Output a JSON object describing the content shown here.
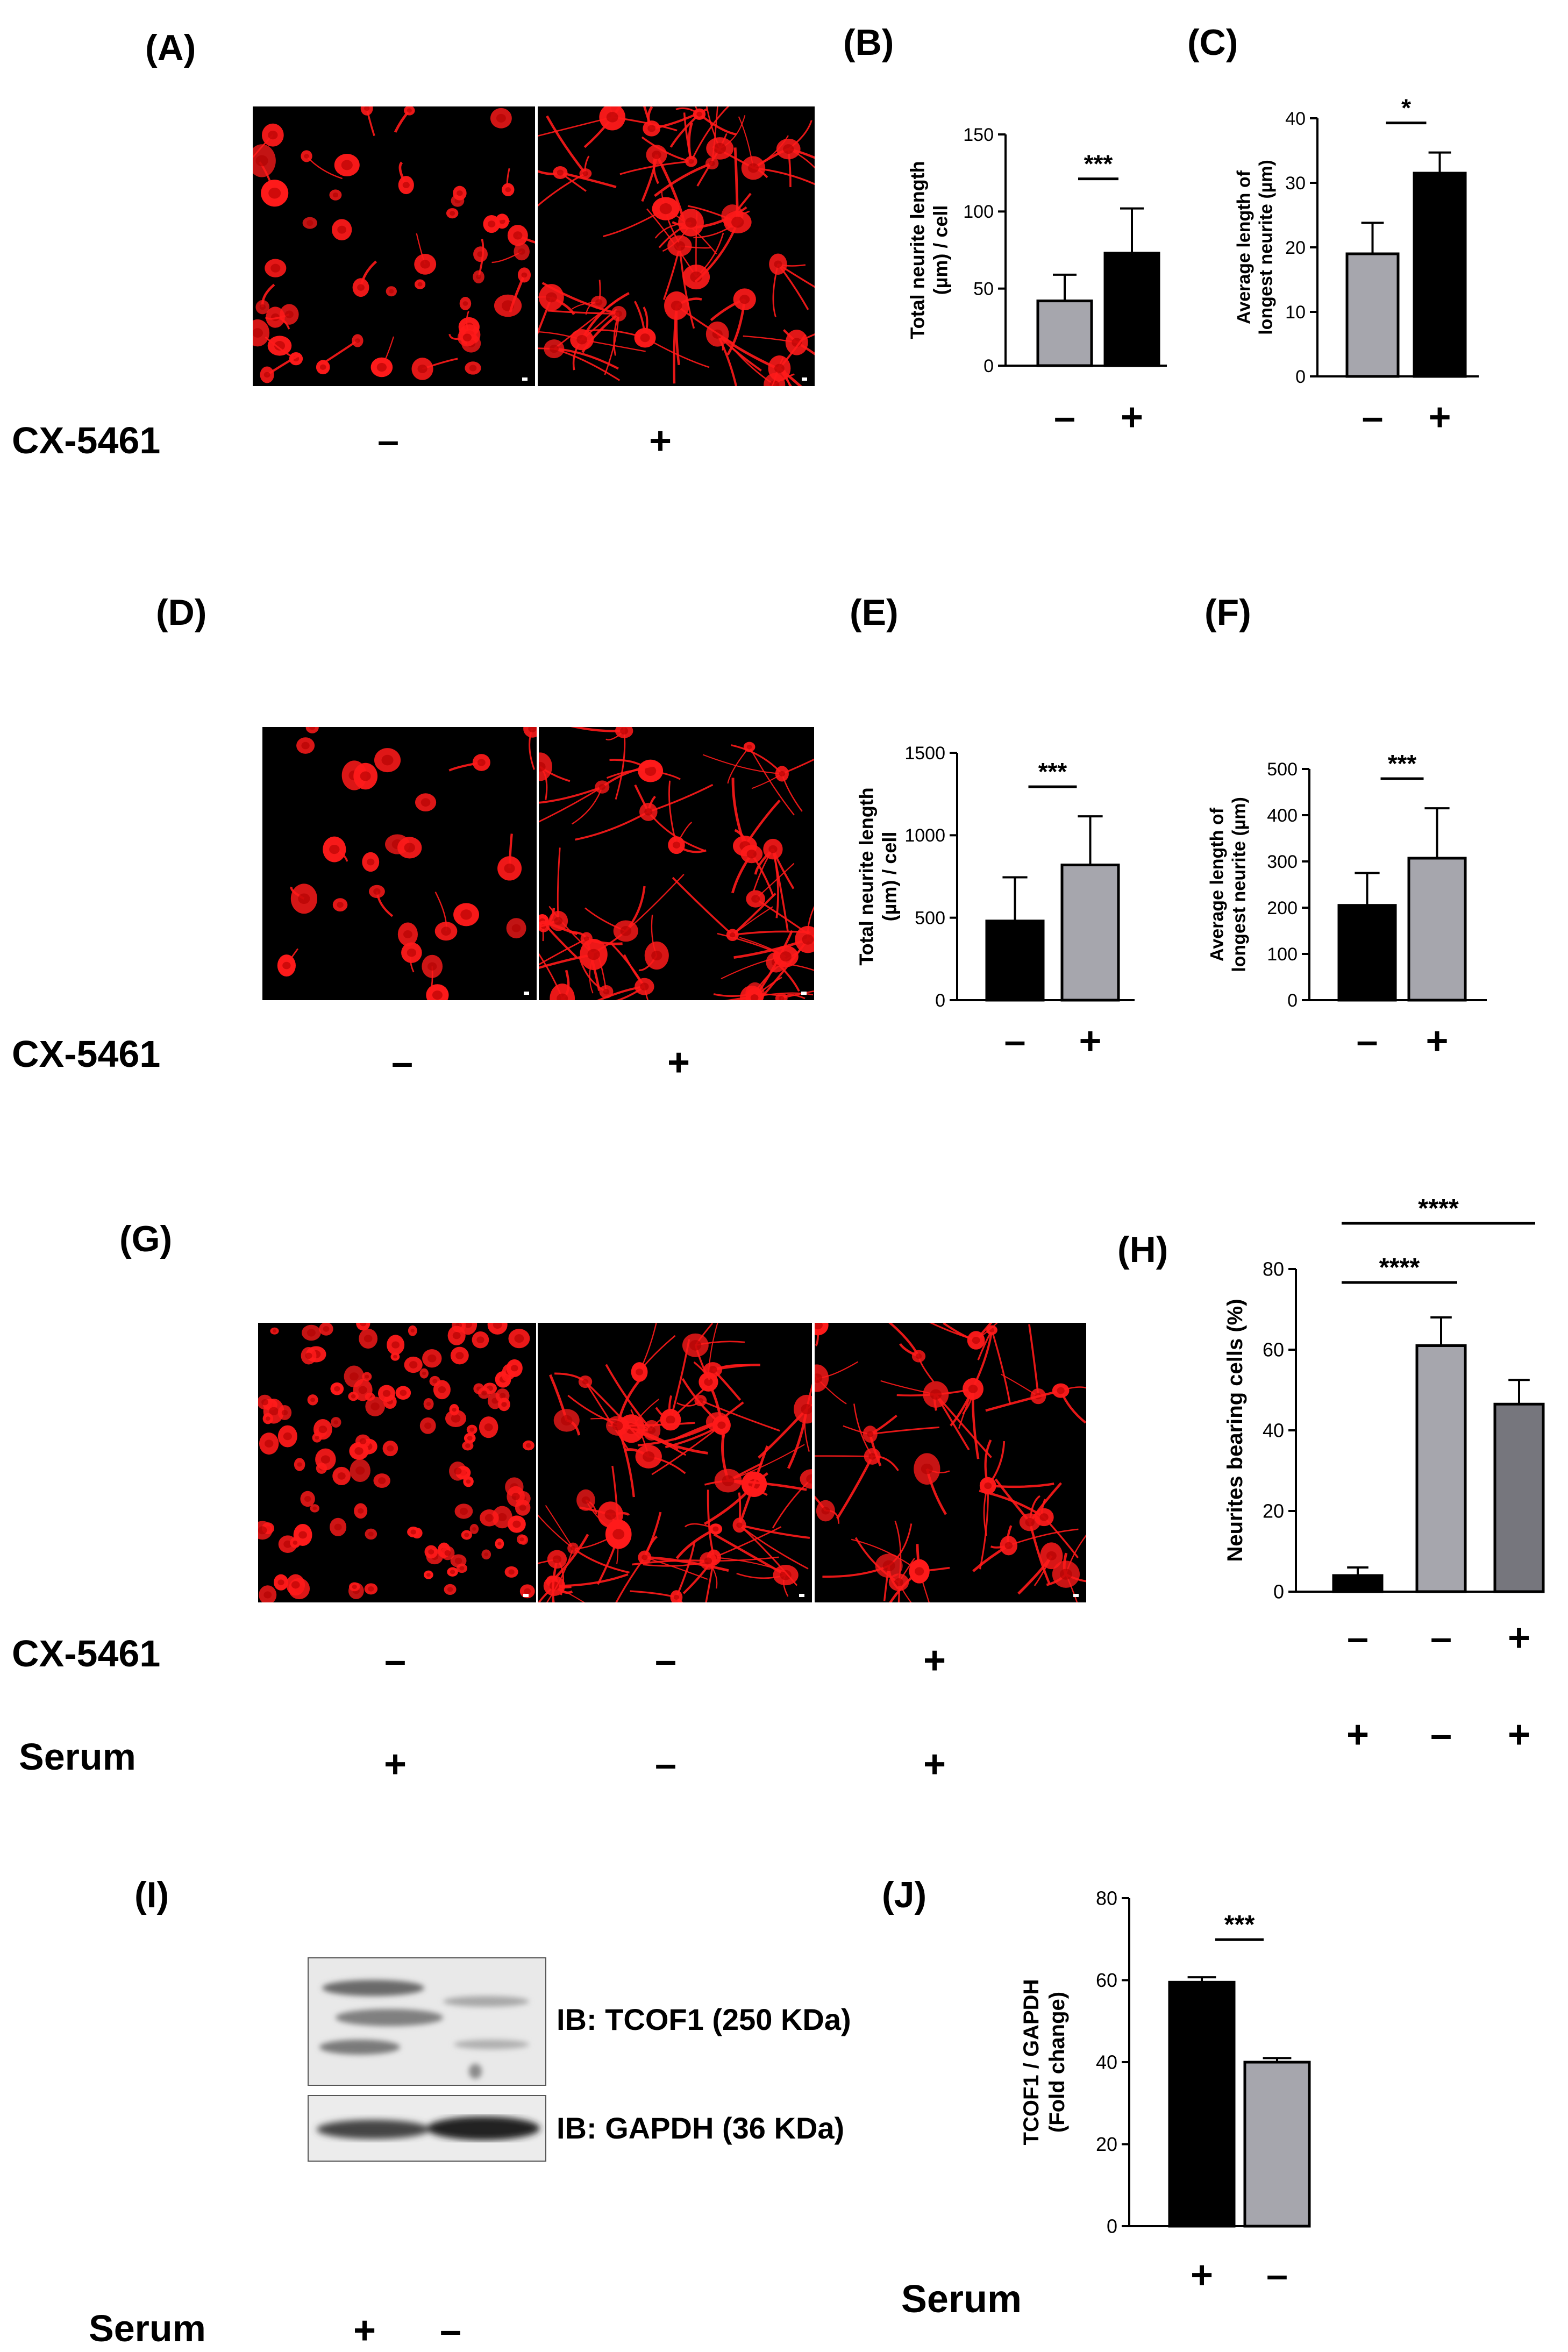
{
  "panels": {
    "A": {
      "letter": "(A)",
      "row_label": "CX-5461",
      "signs": [
        "–",
        "+"
      ]
    },
    "B": {
      "letter": "(B)"
    },
    "C": {
      "letter": "(C)"
    },
    "D": {
      "letter": "(D)",
      "row_label": "CX-5461",
      "signs": [
        "–",
        "+"
      ]
    },
    "E": {
      "letter": "(E)"
    },
    "F": {
      "letter": "(F)"
    },
    "G": {
      "letter": "(G)",
      "row1_label": "CX-5461",
      "row1_signs": [
        "–",
        "–",
        "+"
      ],
      "row2_label": "Serum",
      "row2_signs": [
        "+",
        "–",
        "+"
      ]
    },
    "H": {
      "letter": "(H)"
    },
    "I": {
      "letter": "(I)",
      "blot_labels": [
        "IB: TCOF1 (250 KDa)",
        "IB: GAPDH (36 KDa)"
      ],
      "row_label": "Serum",
      "signs": [
        "+",
        "–"
      ]
    },
    "J": {
      "letter": "(J)"
    }
  },
  "colors": {
    "black_bar": "#000000",
    "grey_bar": "#a6a6ad",
    "dark_grey_bar": "#76767d",
    "stain": "#ff1a1a"
  },
  "chart_data": [
    {
      "panel": "B",
      "type": "bar",
      "categories": [
        "–",
        "+"
      ],
      "values": [
        42,
        73
      ],
      "errors": [
        17,
        29
      ],
      "colors": [
        "#a6a6ad",
        "#000000"
      ],
      "ylabel": "Total neurite length (µm) / cell",
      "ylabel_lines": [
        "Total neurite length",
        "(µm) / cell"
      ],
      "ylim": [
        0,
        150
      ],
      "yticks": [
        0,
        50,
        100,
        150
      ],
      "significance": [
        {
          "from": 0,
          "to": 1,
          "label": "***"
        }
      ]
    },
    {
      "panel": "C",
      "type": "bar",
      "categories": [
        "–",
        "+"
      ],
      "values": [
        19,
        31.5
      ],
      "errors": [
        4.8,
        3.2
      ],
      "colors": [
        "#a6a6ad",
        "#000000"
      ],
      "ylabel": "Average length of longest neurite (µm)",
      "ylabel_lines": [
        "Average length of",
        "longest neurite (µm)"
      ],
      "ylim": [
        0,
        40
      ],
      "yticks": [
        0,
        10,
        20,
        30,
        40
      ],
      "significance": [
        {
          "from": 0,
          "to": 1,
          "label": "*"
        }
      ]
    },
    {
      "panel": "E",
      "type": "bar",
      "categories": [
        "–",
        "+"
      ],
      "values": [
        480,
        820
      ],
      "errors": [
        265,
        295
      ],
      "colors": [
        "#000000",
        "#a6a6ad"
      ],
      "ylabel": "Total neurite length (µm) / cell",
      "ylabel_lines": [
        "Total neurite length",
        "(µm) / cell"
      ],
      "ylim": [
        0,
        1500
      ],
      "yticks": [
        0,
        500,
        1000,
        1500
      ],
      "significance": [
        {
          "from": 0,
          "to": 1,
          "label": "***"
        }
      ]
    },
    {
      "panel": "F",
      "type": "bar",
      "categories": [
        "–",
        "+"
      ],
      "values": [
        205,
        307
      ],
      "errors": [
        70,
        108
      ],
      "colors": [
        "#000000",
        "#a6a6ad"
      ],
      "ylabel": "Average length of longest neurite (µm)",
      "ylabel_lines": [
        "Average length of",
        "longest neurite (µm)"
      ],
      "ylim": [
        0,
        500
      ],
      "yticks": [
        0,
        100,
        200,
        300,
        400,
        500
      ],
      "significance": [
        {
          "from": 0,
          "to": 1,
          "label": "***"
        }
      ]
    },
    {
      "panel": "H",
      "type": "bar",
      "categories": [
        "–/+",
        "–/–",
        "+/+"
      ],
      "cx5461": [
        "–",
        "–",
        "+"
      ],
      "serum": [
        "+",
        "–",
        "+"
      ],
      "values": [
        4,
        61,
        46.5
      ],
      "errors": [
        2,
        7,
        6
      ],
      "colors": [
        "#000000",
        "#a6a6ad",
        "#76767d"
      ],
      "ylabel": "Neurites bearing cells (%)",
      "ylabel_lines": [
        "Neurites bearing cells (%)"
      ],
      "ylim": [
        0,
        80
      ],
      "yticks": [
        0,
        20,
        40,
        60,
        80
      ],
      "significance": [
        {
          "from": 0,
          "to": 1,
          "label": "****"
        },
        {
          "from": 0,
          "to": 2,
          "label": "****"
        }
      ]
    },
    {
      "panel": "J",
      "type": "bar",
      "categories": [
        "+",
        "–"
      ],
      "values": [
        59.5,
        40
      ],
      "errors": [
        1.2,
        1
      ],
      "colors": [
        "#000000",
        "#a6a6ad"
      ],
      "ylabel": "TCOF1 / GAPDH (Fold change)",
      "ylabel_lines": [
        "TCOF1 / GAPDH",
        "(Fold change)"
      ],
      "ylim": [
        0,
        80
      ],
      "yticks": [
        0,
        20,
        40,
        60,
        80
      ],
      "significance": [
        {
          "from": 0,
          "to": 1,
          "label": "***"
        }
      ],
      "xlabel": "Serum"
    }
  ]
}
